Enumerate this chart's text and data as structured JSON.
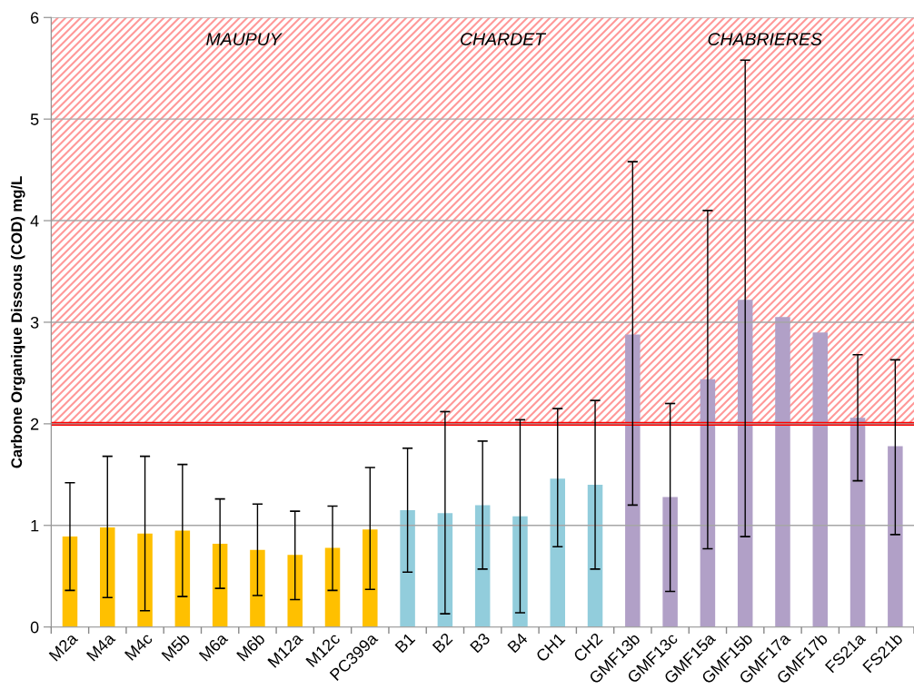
{
  "chart_data": {
    "type": "bar",
    "ylabel": "Carbone Organique Dissous (COD) mg/L",
    "categories": [
      "M2a",
      "M4a",
      "M4c",
      "M5b",
      "M6a",
      "M6b",
      "M12a",
      "M12c",
      "PC399a",
      "B1",
      "B2",
      "B3",
      "B4",
      "CH1",
      "CH2",
      "GMF13b",
      "GMF13c",
      "GMF15a",
      "GMF15b",
      "GMF17a",
      "GMF17b",
      "FS21a",
      "FS21b"
    ],
    "values": [
      0.89,
      0.98,
      0.92,
      0.95,
      0.82,
      0.76,
      0.71,
      0.78,
      0.96,
      1.15,
      1.12,
      1.2,
      1.09,
      1.46,
      1.4,
      2.88,
      1.28,
      2.44,
      3.22,
      3.05,
      2.9,
      2.06,
      1.78
    ],
    "colors": [
      "#ffc000",
      "#ffc000",
      "#ffc000",
      "#ffc000",
      "#ffc000",
      "#ffc000",
      "#ffc000",
      "#ffc000",
      "#ffc000",
      "#92cddc",
      "#92cddc",
      "#92cddc",
      "#92cddc",
      "#92cddc",
      "#92cddc",
      "#b1a0c7",
      "#b1a0c7",
      "#b1a0c7",
      "#b1a0c7",
      "#b1a0c7",
      "#b1a0c7",
      "#b1a0c7",
      "#b1a0c7"
    ],
    "errors": [
      [
        0.36,
        1.42
      ],
      [
        0.29,
        1.68
      ],
      [
        0.16,
        1.68
      ],
      [
        0.3,
        1.6
      ],
      [
        0.38,
        1.26
      ],
      [
        0.31,
        1.21
      ],
      [
        0.27,
        1.14
      ],
      [
        0.36,
        1.19
      ],
      [
        0.37,
        1.57
      ],
      [
        0.54,
        1.76
      ],
      [
        0.13,
        2.12
      ],
      [
        0.57,
        1.83
      ],
      [
        0.14,
        2.04
      ],
      [
        0.79,
        2.15
      ],
      [
        0.57,
        2.23
      ],
      [
        1.2,
        4.58
      ],
      [
        0.35,
        2.2
      ],
      [
        0.77,
        4.1
      ],
      [
        0.89,
        5.58
      ],
      null,
      null,
      [
        1.44,
        2.68
      ],
      [
        0.91,
        2.63
      ]
    ],
    "ylim": [
      0,
      6
    ],
    "yticks": [
      0,
      1,
      2,
      3,
      4,
      5,
      6
    ],
    "grid": "y",
    "ref_lines": [
      {
        "axis": "y",
        "value": 2,
        "color": "#ff0000"
      }
    ],
    "bands": [
      {
        "axis": "y",
        "from": 2,
        "to": 6,
        "color": "#ff9999"
      }
    ],
    "annotations": [
      "MAUPUY",
      "CHARDET",
      "CHABRIERES"
    ]
  }
}
